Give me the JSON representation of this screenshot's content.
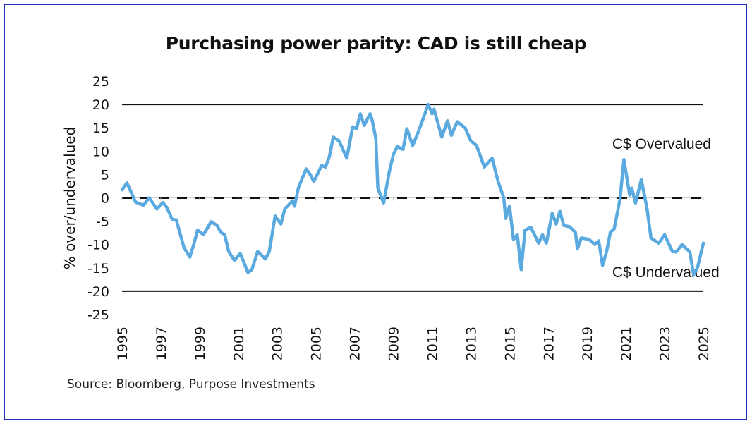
{
  "chart_data": {
    "type": "line",
    "title": "Purchasing power parity: CAD is still cheap",
    "ylabel": "% over/undervalued",
    "xlabel": "",
    "ylim": [
      -25,
      25
    ],
    "xlim": [
      1995,
      2025
    ],
    "yticks": [
      "25",
      "20",
      "15",
      "10",
      "5",
      "0",
      "-5",
      "-10",
      "-15",
      "-20",
      "-25"
    ],
    "xticks": [
      "1995",
      "1997",
      "1999",
      "2001",
      "2003",
      "2005",
      "2007",
      "2009",
      "2011",
      "2013",
      "2015",
      "2017",
      "2019",
      "2021",
      "2023",
      "2025"
    ],
    "grid": false,
    "reference_lines": [
      {
        "y": 20,
        "style": "solid"
      },
      {
        "y": 0,
        "style": "dashed"
      },
      {
        "y": -20,
        "style": "solid"
      }
    ],
    "annotations": [
      {
        "text": "C$ Overvalued",
        "x": 2020.3,
        "y": 10.5
      },
      {
        "text": "C$ Undervalued",
        "x": 2020.3,
        "y": -17
      }
    ],
    "line_color": "#5aaae0",
    "series": [
      {
        "x": [
          1995.0,
          1995.25,
          1995.7,
          1996.1,
          1996.4,
          1996.8,
          1997.1,
          1997.3,
          1997.6,
          1997.8,
          1998.2,
          1998.5,
          1998.7,
          1998.9,
          1999.2,
          1999.6,
          1999.9,
          2000.1,
          2000.3,
          2000.5,
          2000.8,
          2001.1,
          2001.5,
          2001.7,
          2002.0,
          2002.4,
          2002.6,
          2002.9,
          2003.2,
          2003.4,
          2003.8,
          2003.9,
          2004.1,
          2004.5,
          2004.7,
          2004.9,
          2005.3,
          2005.5,
          2005.7,
          2005.9,
          2006.2,
          2006.6,
          2006.9,
          2007.1,
          2007.3,
          2007.5,
          2007.8,
          2007.9,
          2008.1,
          2008.2,
          2008.5,
          2008.8,
          2009.0,
          2009.2,
          2009.5,
          2009.7,
          2010.0,
          2010.3,
          2010.5,
          2010.8,
          2011.0,
          2011.1,
          2011.5,
          2011.8,
          2012.0,
          2012.3,
          2012.7,
          2013.0,
          2013.3,
          2013.7,
          2014.1,
          2014.4,
          2014.7,
          2014.8,
          2015.0,
          2015.2,
          2015.4,
          2015.6,
          2015.8,
          2016.1,
          2016.5,
          2016.7,
          2016.9,
          2017.2,
          2017.4,
          2017.6,
          2017.8,
          2018.1,
          2018.4,
          2018.5,
          2018.7,
          2019.1,
          2019.4,
          2019.6,
          2019.8,
          2020.0,
          2020.2,
          2020.4,
          2020.7,
          2020.9,
          2021.2,
          2021.3,
          2021.5,
          2021.8,
          2022.1,
          2022.3,
          2022.7,
          2023.0,
          2023.4,
          2023.6,
          2023.9,
          2024.3,
          2024.5,
          2024.7,
          2025.0
        ],
        "values": [
          1.7,
          3.2,
          -0.9,
          -1.6,
          0,
          -2.4,
          -1,
          -2,
          -4.7,
          -4.7,
          -10.7,
          -12.7,
          -10,
          -6.9,
          -7.9,
          -5.1,
          -5.9,
          -7.4,
          -7.9,
          -11.5,
          -13.4,
          -11.9,
          -16,
          -15.4,
          -11.5,
          -13.1,
          -11.5,
          -3.9,
          -5.6,
          -2.4,
          -0.6,
          -1.8,
          2.1,
          6.2,
          5.1,
          3.5,
          6.9,
          6.6,
          8.8,
          13,
          12.2,
          8.5,
          15.2,
          14.8,
          18,
          15.5,
          18,
          16.8,
          12.7,
          2.1,
          -1.1,
          5.7,
          9.2,
          11,
          10.4,
          14.8,
          11.2,
          14.2,
          16.5,
          20,
          18,
          19,
          13,
          16.5,
          13.4,
          16.3,
          15,
          12.2,
          11.2,
          6.6,
          8.5,
          3.6,
          0,
          -4.4,
          -1.8,
          -8.9,
          -7.9,
          -15.4,
          -6.9,
          -6.3,
          -9.7,
          -7.9,
          -9.7,
          -3.3,
          -5.6,
          -2.9,
          -5.9,
          -6.2,
          -7.4,
          -10.9,
          -8.6,
          -8.9,
          -10,
          -9.2,
          -14.5,
          -11.6,
          -7.4,
          -6.6,
          -0.3,
          8.2,
          0.6,
          2.1,
          -1.1,
          3.9,
          -2.4,
          -8.6,
          -9.7,
          -7.9,
          -11.5,
          -11.6,
          -10,
          -11.6,
          -16.5,
          -14.9,
          -9.7
        ]
      }
    ]
  },
  "source": "Source: Bloomberg, Purpose Investments"
}
